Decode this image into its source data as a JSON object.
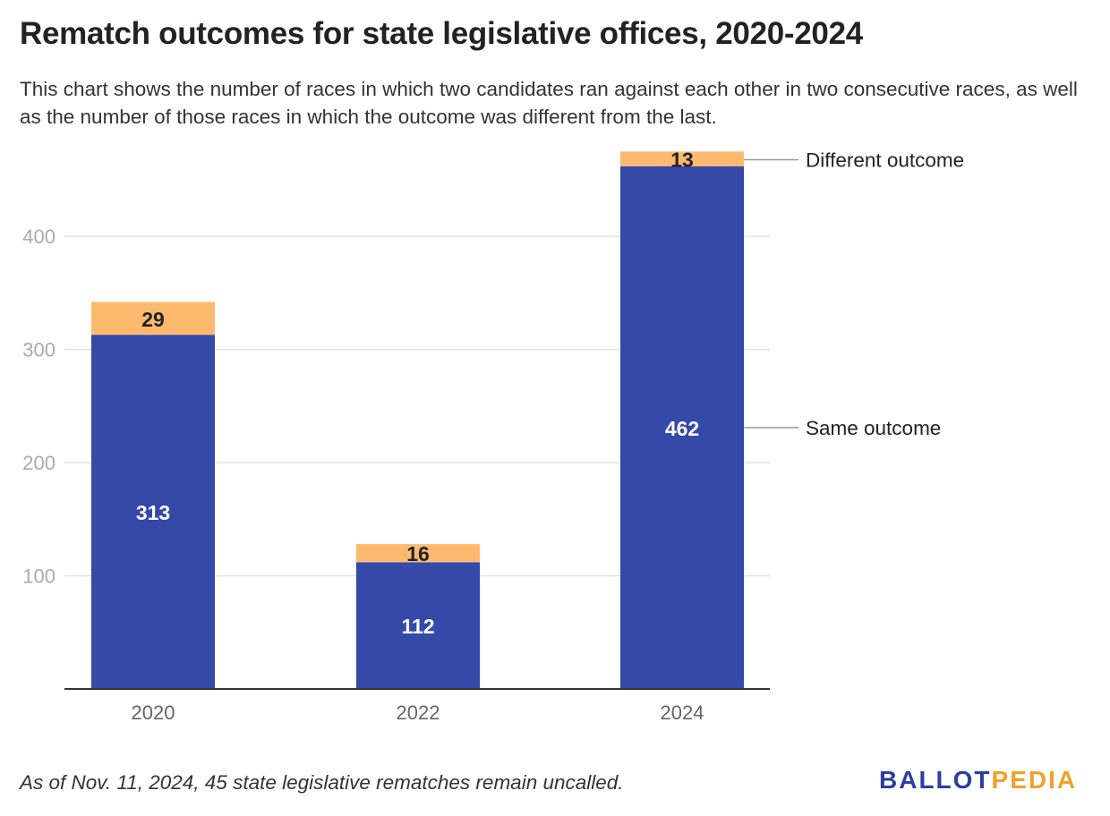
{
  "title": "Rematch outcomes for state legislative offices, 2020-2024",
  "subtitle": "This chart shows the number of races in which two candidates ran against each other in two consecutive races, as well as the number of those races in which the outcome was different from the last.",
  "footnote": "As of Nov. 11, 2024, 45 state legislative rematches remain uncalled.",
  "logo": {
    "part1": "BALLOT",
    "part2": "PEDIA",
    "color1": "#2b3fa0",
    "color2": "#f0a229"
  },
  "chart_data": {
    "type": "bar",
    "stacked": true,
    "categories": [
      "2020",
      "2022",
      "2024"
    ],
    "series": [
      {
        "name": "Same outcome",
        "values": [
          313,
          112,
          462
        ],
        "color": "#3449a8"
      },
      {
        "name": "Different outcome",
        "values": [
          29,
          16,
          13
        ],
        "color": "#fdba6e"
      }
    ],
    "yticks": [
      100,
      200,
      300,
      400
    ],
    "ylim": [
      0,
      475
    ],
    "grid": true,
    "legend": "direct labels right of last bar"
  }
}
